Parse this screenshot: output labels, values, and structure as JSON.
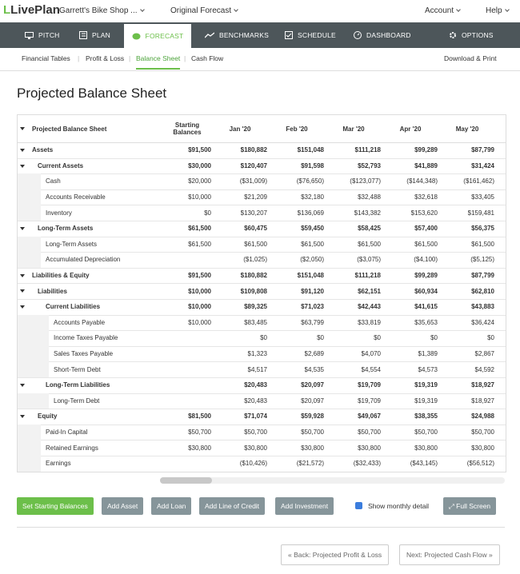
{
  "header": {
    "logo": "LivePlan",
    "company": "Garrett's Bike Shop ...",
    "forecast": "Original Forecast",
    "account": "Account",
    "help": "Help"
  },
  "nav": [
    "PITCH",
    "PLAN",
    "FORECAST",
    "BENCHMARKS",
    "SCHEDULE",
    "DASHBOARD",
    "OPTIONS"
  ],
  "subnav": [
    "Financial Tables",
    "Profit & Loss",
    "Balance Sheet",
    "Cash Flow"
  ],
  "download": "Download & Print",
  "title": "Projected Balance Sheet",
  "table": {
    "columns": [
      "Projected Balance Sheet",
      "Starting Balances",
      "Jan '20",
      "Feb '20",
      "Mar '20",
      "Apr '20",
      "May '20"
    ],
    "rows": [
      {
        "label": "Assets",
        "values": [
          "$91,500",
          "$180,882",
          "$151,048",
          "$111,218",
          "$99,289",
          "$87,799"
        ],
        "children": [
          {
            "label": "Current Assets",
            "values": [
              "$30,000",
              "$120,407",
              "$91,598",
              "$52,793",
              "$41,889",
              "$31,424"
            ],
            "children": [
              {
                "label": "Cash",
                "values": [
                  "$20,000",
                  "($31,009)",
                  "($76,650)",
                  "($123,077)",
                  "($144,348)",
                  "($161,462)"
                ]
              },
              {
                "label": "Accounts Receivable",
                "values": [
                  "$10,000",
                  "$21,209",
                  "$32,180",
                  "$32,488",
                  "$32,618",
                  "$33,405"
                ]
              },
              {
                "label": "Inventory",
                "values": [
                  "$0",
                  "$130,207",
                  "$136,069",
                  "$143,382",
                  "$153,620",
                  "$159,481"
                ]
              }
            ]
          },
          {
            "label": "Long-Term Assets",
            "values": [
              "$61,500",
              "$60,475",
              "$59,450",
              "$58,425",
              "$57,400",
              "$56,375"
            ],
            "children": [
              {
                "label": "Long-Term Assets",
                "values": [
                  "$61,500",
                  "$61,500",
                  "$61,500",
                  "$61,500",
                  "$61,500",
                  "$61,500"
                ]
              },
              {
                "label": "Accumulated Depreciation",
                "values": [
                  null,
                  "($1,025)",
                  "($2,050)",
                  "($3,075)",
                  "($4,100)",
                  "($5,125)"
                ]
              }
            ]
          }
        ]
      },
      {
        "label": "Liabilities & Equity",
        "values": [
          "$91,500",
          "$180,882",
          "$151,048",
          "$111,218",
          "$99,289",
          "$87,799"
        ],
        "children": [
          {
            "label": "Liabilities",
            "values": [
              "$10,000",
              "$109,808",
              "$91,120",
              "$62,151",
              "$60,934",
              "$62,810"
            ],
            "children": [
              {
                "label": "Current Liabilities",
                "values": [
                  "$10,000",
                  "$89,325",
                  "$71,023",
                  "$42,443",
                  "$41,615",
                  "$43,883"
                ],
                "children": [
                  {
                    "label": "Accounts Payable",
                    "values": [
                      "$10,000",
                      "$83,485",
                      "$63,799",
                      "$33,819",
                      "$35,653",
                      "$36,424"
                    ]
                  },
                  {
                    "label": "Income Taxes Payable",
                    "values": [
                      null,
                      "$0",
                      "$0",
                      "$0",
                      "$0",
                      "$0"
                    ]
                  },
                  {
                    "label": "Sales Taxes Payable",
                    "values": [
                      null,
                      "$1,323",
                      "$2,689",
                      "$4,070",
                      "$1,389",
                      "$2,867"
                    ]
                  },
                  {
                    "label": "Short-Term Debt",
                    "values": [
                      null,
                      "$4,517",
                      "$4,535",
                      "$4,554",
                      "$4,573",
                      "$4,592"
                    ]
                  }
                ]
              },
              {
                "label": "Long-Term Liabilities",
                "values": [
                  null,
                  "$20,483",
                  "$20,097",
                  "$19,709",
                  "$19,319",
                  "$18,927"
                ],
                "children": [
                  {
                    "label": "Long-Term Debt",
                    "values": [
                      null,
                      "$20,483",
                      "$20,097",
                      "$19,709",
                      "$19,319",
                      "$18,927"
                    ]
                  }
                ]
              }
            ]
          },
          {
            "label": "Equity",
            "values": [
              "$81,500",
              "$71,074",
              "$59,928",
              "$49,067",
              "$38,355",
              "$24,988"
            ],
            "children": [
              {
                "label": "Paid-In Capital",
                "values": [
                  "$50,700",
                  "$50,700",
                  "$50,700",
                  "$50,700",
                  "$50,700",
                  "$50,700"
                ]
              },
              {
                "label": "Retained Earnings",
                "values": [
                  "$30,800",
                  "$30,800",
                  "$30,800",
                  "$30,800",
                  "$30,800",
                  "$30,800"
                ]
              },
              {
                "label": "Earnings",
                "values": [
                  null,
                  "($10,426)",
                  "($21,572)",
                  "($32,433)",
                  "($43,145)",
                  "($56,512)"
                ]
              }
            ]
          }
        ]
      }
    ]
  },
  "buttons": [
    "Set Starting Balances",
    "Add Asset",
    "Add Loan",
    "Add Line of Credit",
    "Add Investment"
  ],
  "checkbox": "Show monthly detail",
  "fullscreen": "Full Screen",
  "back": "« Back: Projected Profit & Loss",
  "next": "Next: Projected Cash Flow »"
}
